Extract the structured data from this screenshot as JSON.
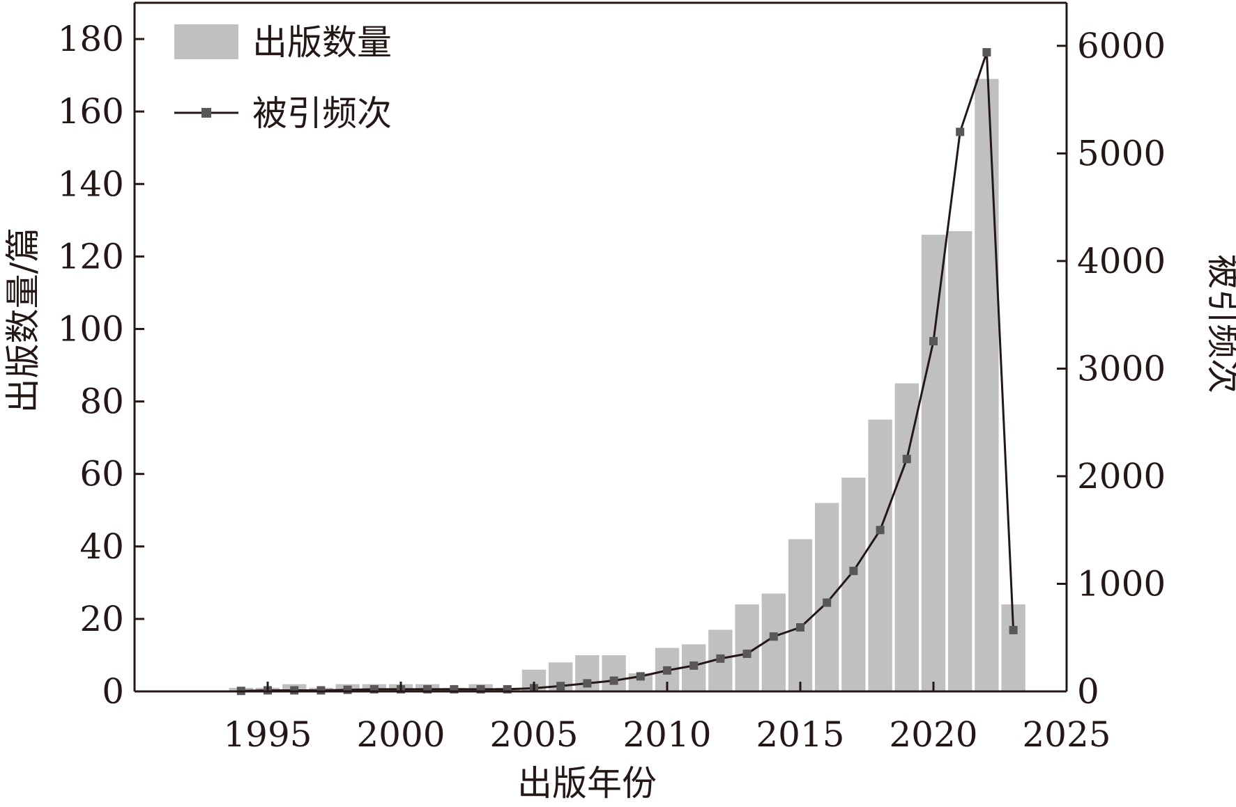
{
  "chart_data": {
    "type": "bar+line",
    "title": "",
    "xlabel": "出版年份",
    "ylabel_left": "出版数量/篇",
    "ylabel_right": "被引频次",
    "x_ticks": [
      1995,
      2000,
      2005,
      2010,
      2015,
      2020,
      2025
    ],
    "xlim": [
      1990,
      2025
    ],
    "ylim_left": [
      0,
      190
    ],
    "y_ticks_left": [
      0,
      20,
      40,
      60,
      80,
      100,
      120,
      140,
      160,
      180
    ],
    "ylim_right": [
      0,
      6400
    ],
    "y_ticks_right": [
      0,
      1000,
      2000,
      3000,
      4000,
      5000,
      6000
    ],
    "legend_position": "top-left",
    "colors": {
      "bars": "#c0c0c0",
      "line": "#231815",
      "markers": "#595757",
      "axis": "#231815"
    },
    "series": [
      {
        "name": "出版数量",
        "type": "bar",
        "axis": "left",
        "x": [
          1994,
          1995,
          1996,
          1997,
          1998,
          1999,
          2000,
          2001,
          2002,
          2003,
          2004,
          2005,
          2006,
          2007,
          2008,
          2009,
          2010,
          2011,
          2012,
          2013,
          2014,
          2015,
          2016,
          2017,
          2018,
          2019,
          2020,
          2021,
          2022,
          2023
        ],
        "values": [
          1,
          1,
          2,
          1,
          2,
          2,
          2,
          2,
          1,
          2,
          1,
          6,
          8,
          10,
          10,
          5,
          12,
          13,
          17,
          24,
          27,
          42,
          52,
          59,
          75,
          85,
          126,
          127,
          169,
          24
        ]
      },
      {
        "name": "被引频次",
        "type": "line",
        "axis": "right",
        "x": [
          1994,
          1995,
          1996,
          1997,
          1998,
          1999,
          2000,
          2001,
          2002,
          2003,
          2004,
          2005,
          2006,
          2007,
          2008,
          2009,
          2010,
          2011,
          2012,
          2013,
          2014,
          2015,
          2016,
          2017,
          2018,
          2019,
          2020,
          2021,
          2022,
          2023
        ],
        "values": [
          5,
          10,
          10,
          10,
          15,
          20,
          20,
          20,
          20,
          20,
          20,
          30,
          50,
          75,
          100,
          140,
          195,
          240,
          305,
          350,
          510,
          595,
          825,
          1120,
          1500,
          2160,
          3255,
          5200,
          5940,
          570
        ]
      }
    ]
  }
}
